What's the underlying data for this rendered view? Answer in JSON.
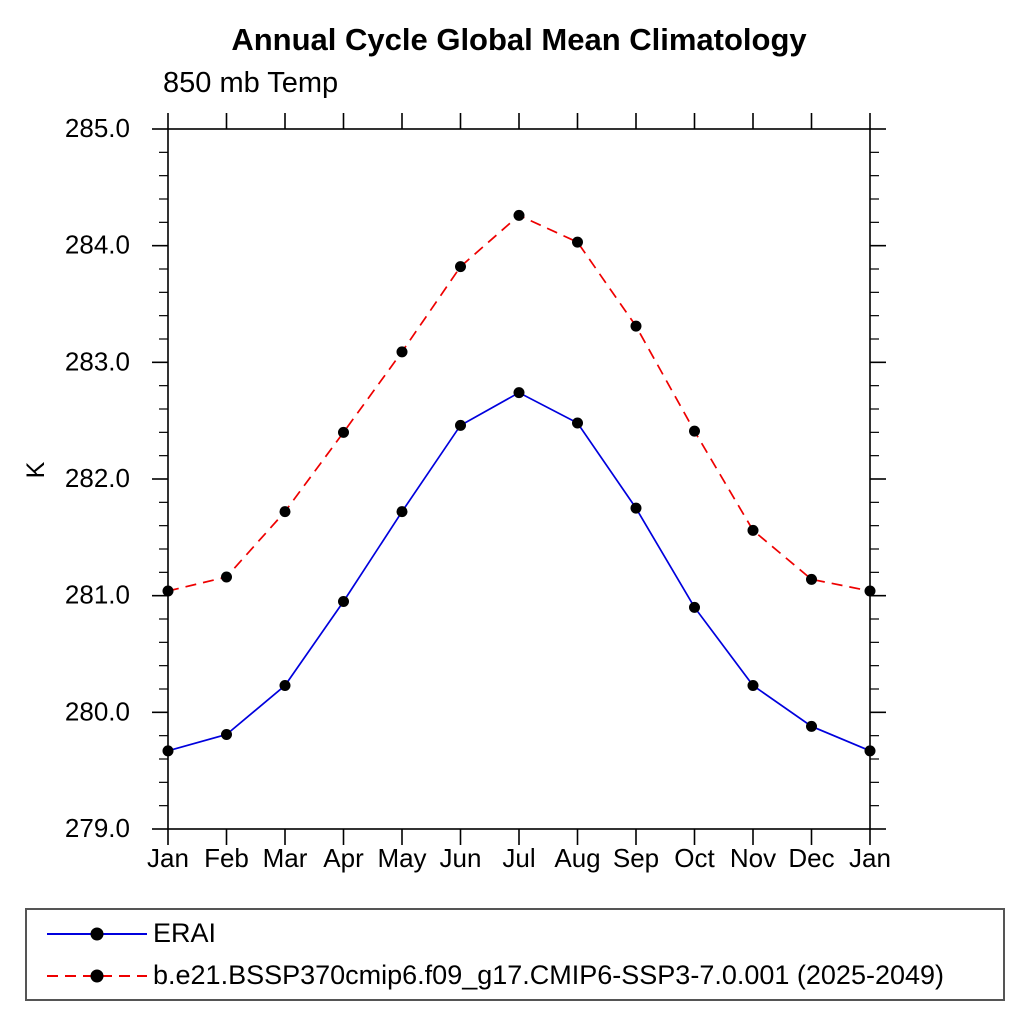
{
  "chart_data": {
    "type": "line",
    "title": "Annual Cycle Global Mean Climatology",
    "subtitle": "850 mb Temp",
    "ylabel": "K",
    "xlabel": "",
    "categories": [
      "Jan",
      "Feb",
      "Mar",
      "Apr",
      "May",
      "Jun",
      "Jul",
      "Aug",
      "Sep",
      "Oct",
      "Nov",
      "Dec",
      "Jan"
    ],
    "ylim": [
      279.0,
      285.0
    ],
    "ytick_major_interval": 1.0,
    "ytick_minor_interval": 0.2,
    "ytick_labels": [
      "279.0",
      "280.0",
      "281.0",
      "282.0",
      "283.0",
      "284.0",
      "285.0"
    ],
    "grid": false,
    "axis_color": "#000000",
    "marker": {
      "shape": "circle",
      "color": "#000000",
      "radius_px": 5.5
    },
    "legend_position": "below-plot-left",
    "series": [
      {
        "name": "ERAI",
        "color": "#0000dd",
        "line_style": "solid",
        "values": [
          279.67,
          279.81,
          280.23,
          280.95,
          281.72,
          282.46,
          282.74,
          282.48,
          281.75,
          280.9,
          280.23,
          279.88,
          279.67
        ]
      },
      {
        "name": "b.e21.BSSP370cmip6.f09_g17.CMIP6-SSP3-7.0.001 (2025-2049)",
        "color": "#ee0000",
        "line_style": "dashed",
        "values": [
          281.04,
          281.16,
          281.72,
          282.4,
          283.09,
          283.82,
          284.26,
          284.03,
          283.31,
          282.41,
          281.56,
          281.14,
          281.04
        ]
      }
    ]
  }
}
